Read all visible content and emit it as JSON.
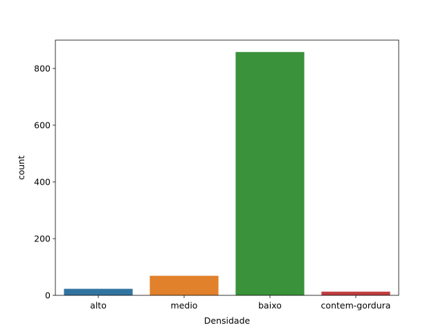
{
  "chart_data": {
    "type": "bar",
    "title": "",
    "xlabel": "Densidade",
    "ylabel": "count",
    "categories": [
      "alto",
      "medio",
      "baixo",
      "contem-gordura"
    ],
    "values": [
      23,
      69,
      858,
      13
    ],
    "colors": [
      "#3274a1",
      "#e1812c",
      "#3a923a",
      "#c03d3e"
    ],
    "ylim": [
      0,
      900
    ],
    "yticks": [
      0,
      200,
      400,
      600,
      800
    ],
    "grid": false,
    "legend": "none"
  }
}
